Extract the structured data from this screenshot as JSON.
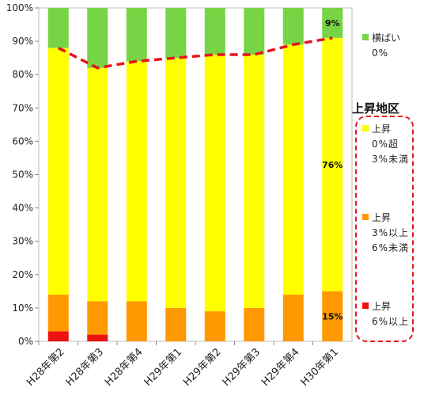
{
  "chart_data": {
    "type": "bar",
    "stacked": true,
    "categories": [
      "H28年第2",
      "H28年第3",
      "H28年第4",
      "H29年第1",
      "H29年第2",
      "H29年第3",
      "H29年第4",
      "H30年第1"
    ],
    "series": [
      {
        "key": "rise_6",
        "color": "#ee1111",
        "values": [
          3,
          2,
          0,
          0,
          0,
          0,
          0,
          0
        ]
      },
      {
        "key": "rise_3_6",
        "color": "#ff9900",
        "values": [
          11,
          10,
          12,
          10,
          9,
          10,
          14,
          15
        ]
      },
      {
        "key": "rise_0_3",
        "color": "#ffff00",
        "values": [
          74,
          70,
          72,
          75,
          77,
          76,
          75,
          76
        ]
      },
      {
        "key": "flat",
        "color": "#77d444",
        "values": [
          12,
          18,
          16,
          15,
          14,
          14,
          11,
          9
        ]
      }
    ],
    "line": {
      "color": "#e8141b",
      "style": "dashed",
      "values": [
        88,
        82,
        84,
        85,
        86,
        86,
        89,
        91
      ]
    },
    "ylim": [
      0,
      100
    ],
    "yticks": [
      "0%",
      "10%",
      "20%",
      "30%",
      "40%",
      "50%",
      "60%",
      "70%",
      "80%",
      "90%",
      "100%"
    ],
    "data_labels": [
      {
        "series": "flat",
        "category_index": 7,
        "text": "9%"
      },
      {
        "series": "rise_0_3",
        "category_index": 7,
        "text": "76%"
      },
      {
        "series": "rise_3_6",
        "category_index": 7,
        "text": "15%"
      }
    ],
    "legend": {
      "flat": {
        "line1": "横ばい",
        "line2": "0%"
      },
      "group_title": "上昇地区",
      "rise_0_3": {
        "line1": "上昇",
        "line2": "0%超",
        "line3": "3%未満"
      },
      "rise_3_6": {
        "line1": "上昇",
        "line2": "3%以上",
        "line3": "6%未満"
      },
      "rise_6": {
        "line1": "上昇",
        "line2": "6%以上"
      }
    },
    "legend_placement": "right",
    "grid": false
  }
}
